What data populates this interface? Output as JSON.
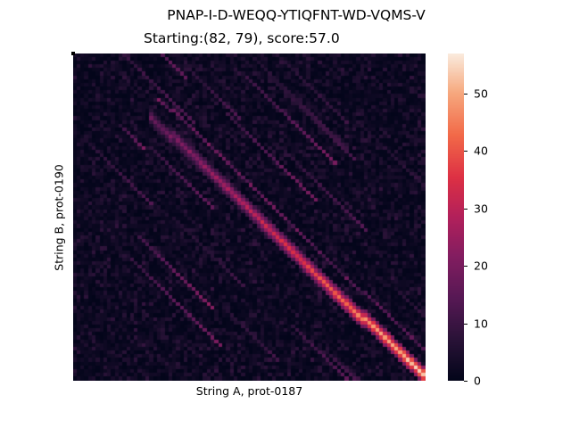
{
  "chart_data": {
    "type": "heatmap",
    "title": "PNAP-I-D-WEQQ-YTIQFNT-WD-VQMS-V",
    "subtitle": "Starting:(82, 79), score:57.0",
    "xlabel": "String A, prot-0187",
    "ylabel": "String B, prot-0190",
    "start": [
      82,
      79
    ],
    "score": 57.0,
    "colorbar": {
      "min": 0,
      "max": 57,
      "ticks": [
        0,
        10,
        20,
        30,
        40,
        50
      ],
      "colormap": "rocket"
    },
    "grid": false
  }
}
